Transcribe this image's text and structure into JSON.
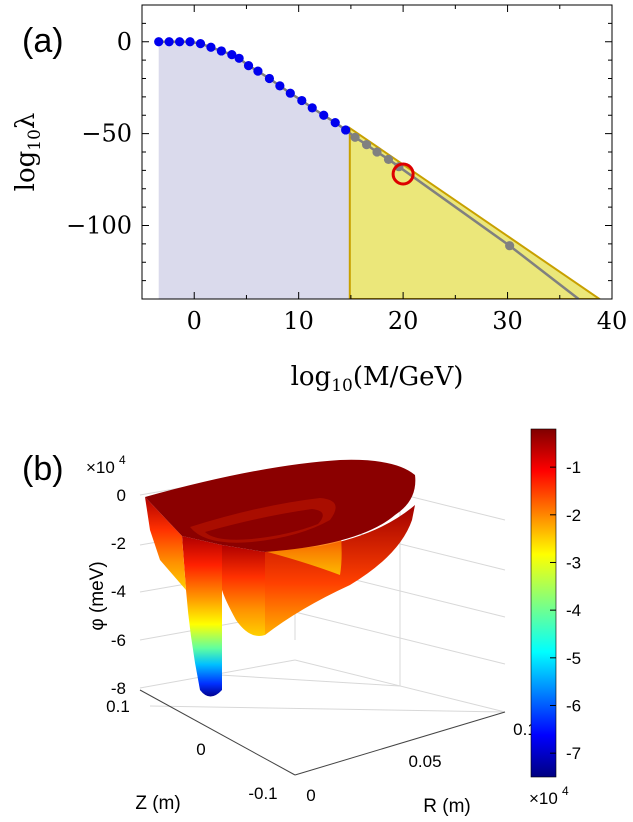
{
  "panels": {
    "a": {
      "label": "(a)"
    },
    "b": {
      "label": "(b)"
    }
  },
  "chart_data": [
    {
      "type": "line",
      "panel": "(a)",
      "xlabel": "log10(M/GeV)",
      "ylabel": "log10λ",
      "xlim": [
        -5,
        40
      ],
      "ylim": [
        -140,
        20
      ],
      "xticks": [
        0,
        10,
        20,
        30,
        40
      ],
      "yticks": [
        0,
        -50,
        -100
      ],
      "grid": false,
      "series": [
        {
          "points": [
            [
              -3.4,
              0
            ],
            [
              -2.4,
              0
            ],
            [
              -1.4,
              0
            ],
            [
              -0.4,
              0
            ],
            [
              0.6,
              -1
            ],
            [
              1.6,
              -3
            ],
            [
              2.6,
              -5
            ],
            [
              3.6,
              -7
            ],
            [
              4.3,
              -9
            ],
            [
              5.2,
              -13
            ],
            [
              6.1,
              -16
            ],
            [
              7.2,
              -20
            ],
            [
              8.2,
              -24
            ],
            [
              9.2,
              -28
            ],
            [
              10.3,
              -32
            ],
            [
              11.3,
              -36
            ],
            [
              12.4,
              -40
            ],
            [
              13.5,
              -44
            ],
            [
              14.5,
              -48
            ]
          ],
          "color": "#0000ee",
          "marker": "circle"
        },
        {
          "points": [
            [
              15.4,
              -52
            ],
            [
              16.5,
              -56
            ],
            [
              17.5,
              -60
            ],
            [
              18.6,
              -64
            ],
            [
              19.6,
              -68
            ],
            [
              30.2,
              -111
            ]
          ],
          "color": "#808080",
          "marker": "circle"
        }
      ],
      "trend_line": {
        "x": [
          -3.4,
          36.8
        ],
        "color": "#808080"
      },
      "filled_regions": [
        {
          "color": "#dadaec",
          "polygon": [
            [
              -3.4,
              -140
            ],
            [
              -3.4,
              0
            ],
            [
              -0.4,
              0
            ],
            [
              0.6,
              -1
            ],
            [
              2.6,
              -5
            ],
            [
              4.3,
              -9
            ],
            [
              7.2,
              -20
            ],
            [
              10.3,
              -32
            ],
            [
              13.5,
              -44
            ],
            [
              14.9,
              -50
            ],
            [
              14.9,
              -140
            ]
          ]
        },
        {
          "color": "#ebe77a",
          "edge": "#c8a000",
          "polygon": [
            [
              14.9,
              -140
            ],
            [
              14.9,
              -47
            ],
            [
              38.8,
              -140
            ]
          ]
        }
      ],
      "highlight": {
        "x": 20.0,
        "y": -72,
        "color": "#dd0000"
      }
    },
    {
      "type": "surface",
      "panel": "(b)",
      "xlabel": "R (m)",
      "ylabel": "Z (m)",
      "zlabel": "φ (meV)",
      "zexponent": "×10^4",
      "zticks": [
        "0",
        "-2",
        "-4",
        "-6",
        "-8"
      ],
      "rticks": [
        "0",
        "0.05",
        "0.1"
      ],
      "zaxis_ticks": [
        "0.1",
        "0",
        "-0.1"
      ],
      "colorbar": {
        "ticks": [
          "-1",
          "-2",
          "-3",
          "-4",
          "-5",
          "-6",
          "-7"
        ],
        "exponent": "×10^4",
        "colormap": "jet",
        "range": [
          -7.5,
          -0.2
        ]
      }
    }
  ]
}
